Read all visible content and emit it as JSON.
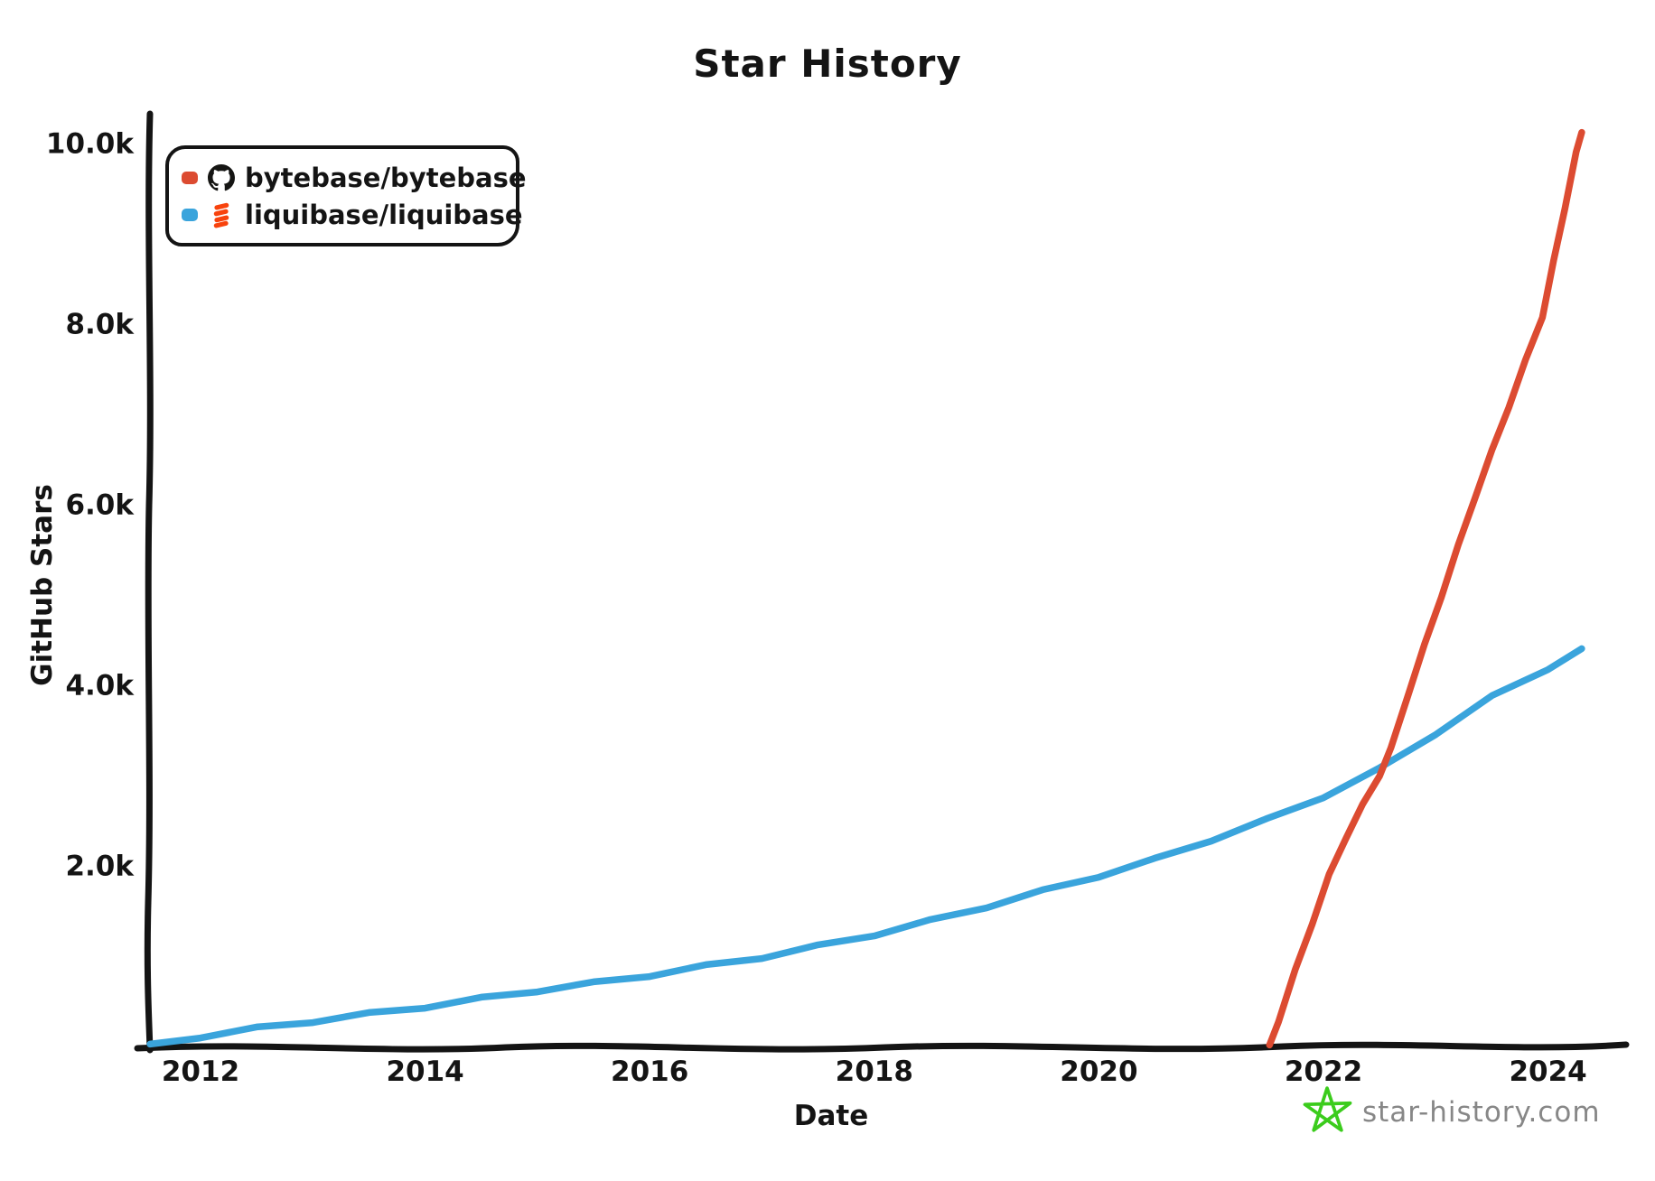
{
  "page": {
    "watermark_text": "star-history.com"
  },
  "chart_data": {
    "type": "line",
    "title": "Star History",
    "xlabel": "Date",
    "ylabel": "GitHub Stars",
    "xlim": [
      2011.45,
      2024.55
    ],
    "ylim": [
      0,
      10000
    ],
    "grid": false,
    "legend_position": "top-left",
    "x_ticks": [
      2012,
      2014,
      2016,
      2018,
      2020,
      2022,
      2024
    ],
    "y_ticks": [
      {
        "label": "2.0k",
        "value": 2000
      },
      {
        "label": "4.0k",
        "value": 4000
      },
      {
        "label": "6.0k",
        "value": 6000
      },
      {
        "label": "8.0k",
        "value": 8000
      },
      {
        "label": "10.0k",
        "value": 10000
      }
    ],
    "series": [
      {
        "name": "bytebase/bytebase",
        "color": "#DC4B31",
        "icon": "github-octocat",
        "points": [
          [
            2021.52,
            10
          ],
          [
            2021.6,
            300
          ],
          [
            2021.75,
            850
          ],
          [
            2021.9,
            1380
          ],
          [
            2022.05,
            1900
          ],
          [
            2022.2,
            2330
          ],
          [
            2022.35,
            2680
          ],
          [
            2022.5,
            3020
          ],
          [
            2022.6,
            3300
          ],
          [
            2022.75,
            3900
          ],
          [
            2022.9,
            4450
          ],
          [
            2023.05,
            5000
          ],
          [
            2023.2,
            5550
          ],
          [
            2023.35,
            6100
          ],
          [
            2023.5,
            6600
          ],
          [
            2023.65,
            7100
          ],
          [
            2023.8,
            7600
          ],
          [
            2023.95,
            8100
          ],
          [
            2024.05,
            8700
          ],
          [
            2024.15,
            9300
          ],
          [
            2024.25,
            9900
          ],
          [
            2024.3,
            10150
          ]
        ]
      },
      {
        "name": "liquibase/liquibase",
        "color": "#3AA4DC",
        "icon": "liquibase-logo",
        "points": [
          [
            2011.55,
            20
          ],
          [
            2012,
            120
          ],
          [
            2012.5,
            210
          ],
          [
            2013,
            290
          ],
          [
            2013.5,
            370
          ],
          [
            2014,
            450
          ],
          [
            2014.5,
            540
          ],
          [
            2015,
            630
          ],
          [
            2015.5,
            710
          ],
          [
            2016,
            800
          ],
          [
            2016.5,
            900
          ],
          [
            2017,
            1000
          ],
          [
            2017.5,
            1120
          ],
          [
            2018,
            1250
          ],
          [
            2018.5,
            1400
          ],
          [
            2019,
            1560
          ],
          [
            2019.5,
            1730
          ],
          [
            2020,
            1900
          ],
          [
            2020.5,
            2080
          ],
          [
            2021,
            2300
          ],
          [
            2021.5,
            2520
          ],
          [
            2022,
            2780
          ],
          [
            2022.5,
            3080
          ],
          [
            2023,
            3480
          ],
          [
            2023.5,
            3880
          ],
          [
            2024,
            4200
          ],
          [
            2024.3,
            4400
          ]
        ]
      }
    ],
    "colors": {
      "axis": "#141414",
      "watermark_text": "#878787",
      "watermark_star": "#3BCC1C",
      "liquibase_icon": "#F8430D",
      "github_icon": "#151513"
    }
  }
}
